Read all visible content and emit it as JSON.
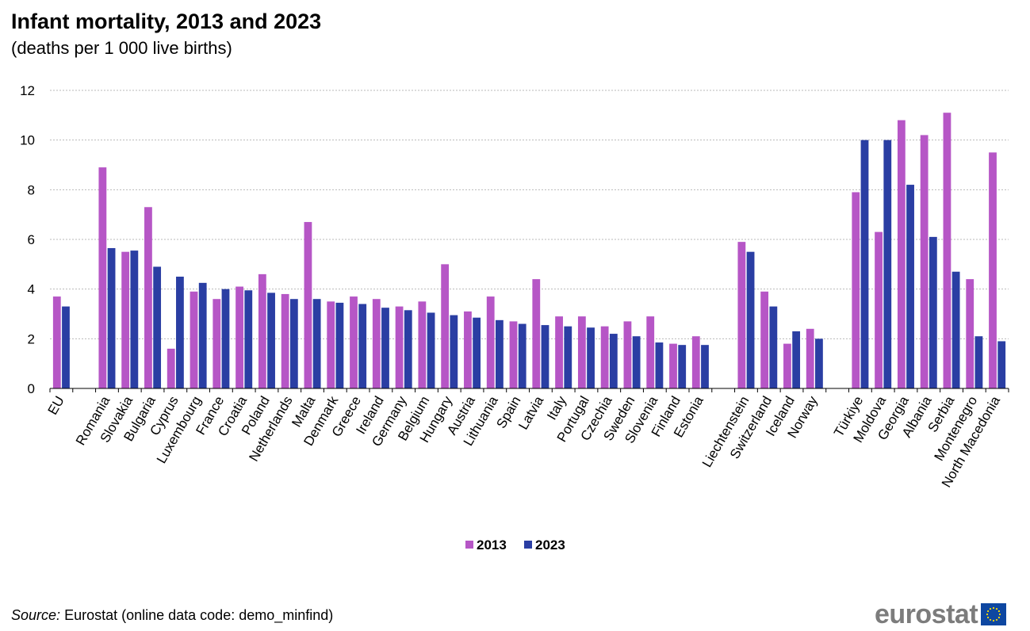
{
  "chart_data": {
    "type": "bar",
    "title": "Infant mortality, 2013 and 2023",
    "subtitle": "(deaths per 1 000 live births)",
    "xlabel": "",
    "ylabel": "",
    "ylim": [
      0,
      12
    ],
    "yticks": [
      0,
      2,
      4,
      6,
      8,
      10,
      12
    ],
    "grid": true,
    "legend_position": "bottom-center",
    "categories": [
      "EU",
      "",
      "Romania",
      "Slovakia",
      "Bulgaria",
      "Cyprus",
      "Luxembourg",
      "France",
      "Croatia",
      "Poland",
      "Netherlands",
      "Malta",
      "Denmark",
      "Greece",
      "Ireland",
      "Germany",
      "Belgium",
      "Hungary",
      "Austria",
      "Lithuania",
      "Spain",
      "Latvia",
      "Italy",
      "Portugal",
      "Czechia",
      "Sweden",
      "Slovenia",
      "Finland",
      "Estonia",
      "",
      "Liechtenstein",
      "Switzerland",
      "Iceland",
      "Norway",
      "",
      "Türkiye",
      "Moldova",
      "Georgia",
      "Albania",
      "Serbia",
      "Montenegro",
      "North Macedonia"
    ],
    "series": [
      {
        "name": "2013",
        "color": "#b656c6",
        "values": [
          3.7,
          null,
          8.9,
          5.5,
          7.3,
          1.6,
          3.9,
          3.6,
          4.1,
          4.6,
          3.8,
          6.7,
          3.5,
          3.7,
          3.6,
          3.3,
          3.5,
          5.0,
          3.1,
          3.7,
          2.7,
          4.4,
          2.9,
          2.9,
          2.5,
          2.7,
          2.9,
          1.8,
          2.1,
          null,
          5.9,
          3.9,
          1.8,
          2.4,
          null,
          7.9,
          6.3,
          10.8,
          10.2,
          11.1,
          4.4,
          9.5
        ]
      },
      {
        "name": "2023",
        "color": "#2a3ea3",
        "values": [
          3.3,
          null,
          5.65,
          5.55,
          4.9,
          4.5,
          4.25,
          4.0,
          3.95,
          3.85,
          3.6,
          3.6,
          3.45,
          3.4,
          3.25,
          3.15,
          3.05,
          2.95,
          2.85,
          2.75,
          2.6,
          2.55,
          2.5,
          2.45,
          2.2,
          2.1,
          1.85,
          1.75,
          1.75,
          null,
          5.5,
          3.3,
          2.3,
          2.0,
          null,
          10.0,
          10.0,
          8.2,
          6.1,
          4.7,
          2.1,
          1.9
        ]
      }
    ]
  },
  "source": {
    "label": "Source:",
    "text": "Eurostat (online data code: demo_minfind)"
  },
  "logo": {
    "text": "eurostat"
  }
}
